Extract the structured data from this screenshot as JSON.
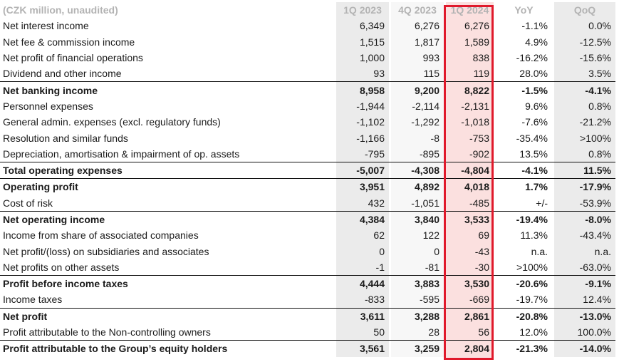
{
  "header": {
    "label": "(CZK million, unaudited)",
    "cols": [
      "1Q 2023",
      "4Q 2023",
      "1Q 2024",
      "YoY",
      "QoQ"
    ]
  },
  "rows": [
    {
      "label": "Net interest income",
      "bold": false,
      "v": [
        "6,349",
        "6,276",
        "6,276",
        "-1.1%",
        "0.0%"
      ]
    },
    {
      "label": "Net fee & commission income",
      "bold": false,
      "v": [
        "1,515",
        "1,817",
        "1,589",
        "4.9%",
        "-12.5%"
      ]
    },
    {
      "label": "Net profit of financial operations",
      "bold": false,
      "v": [
        "1,000",
        "993",
        "838",
        "-16.2%",
        "-15.6%"
      ]
    },
    {
      "label": "Dividend and other income",
      "bold": false,
      "v": [
        "93",
        "115",
        "119",
        "28.0%",
        "3.5%"
      ]
    },
    {
      "label": "Net banking income",
      "bold": true,
      "v": [
        "8,958",
        "9,200",
        "8,822",
        "-1.5%",
        "-4.1%"
      ]
    },
    {
      "label": "Personnel expenses",
      "bold": false,
      "v": [
        "-1,944",
        "-2,114",
        "-2,131",
        "9.6%",
        "0.8%"
      ]
    },
    {
      "label": "General admin. expenses (excl. regulatory funds)",
      "bold": false,
      "v": [
        "-1,102",
        "-1,292",
        "-1,018",
        "-7.6%",
        "-21.2%"
      ]
    },
    {
      "label": "Resolution and similar funds",
      "bold": false,
      "v": [
        "-1,166",
        "-8",
        "-753",
        "-35.4%",
        ">100%"
      ]
    },
    {
      "label": "Depreciation, amortisation & impairment of op. assets",
      "bold": false,
      "v": [
        "-795",
        "-895",
        "-902",
        "13.5%",
        "0.8%"
      ]
    },
    {
      "label": "Total operating expenses",
      "bold": true,
      "v": [
        "-5,007",
        "-4,308",
        "-4,804",
        "-4.1%",
        "11.5%"
      ]
    },
    {
      "label": "Operating profit",
      "bold": true,
      "v": [
        "3,951",
        "4,892",
        "4,018",
        "1.7%",
        "-17.9%"
      ]
    },
    {
      "label": "Cost of risk",
      "bold": false,
      "v": [
        "432",
        "-1,051",
        "-485",
        "+/-",
        "-53.9%"
      ]
    },
    {
      "label": "Net operating income",
      "bold": true,
      "v": [
        "4,384",
        "3,840",
        "3,533",
        "-19.4%",
        "-8.0%"
      ]
    },
    {
      "label": "Income from share of associated companies",
      "bold": false,
      "v": [
        "62",
        "122",
        "69",
        "11.3%",
        "-43.4%"
      ]
    },
    {
      "label": "Net profit/(loss) on subsidiaries and associates",
      "bold": false,
      "v": [
        "0",
        "0",
        "-43",
        "n.a.",
        "n.a."
      ]
    },
    {
      "label": "Net profits on other assets",
      "bold": false,
      "v": [
        "-1",
        "-81",
        "-30",
        ">100%",
        "-63.0%"
      ]
    },
    {
      "label": "Profit before income taxes",
      "bold": true,
      "v": [
        "4,444",
        "3,883",
        "3,530",
        "-20.6%",
        "-9.1%"
      ]
    },
    {
      "label": "Income taxes",
      "bold": false,
      "v": [
        "-833",
        "-595",
        "-669",
        "-19.7%",
        "12.4%"
      ]
    },
    {
      "label": "Net profit",
      "bold": true,
      "v": [
        "3,611",
        "3,288",
        "2,861",
        "-20.8%",
        "-13.0%"
      ]
    },
    {
      "label": "Profit attributable to the Non-controlling owners",
      "bold": false,
      "v": [
        "50",
        "28",
        "56",
        "12.0%",
        "100.0%"
      ]
    },
    {
      "label": "Profit attributable to the Group’s equity holders",
      "bold": true,
      "v": [
        "3,561",
        "3,259",
        "2,804",
        "-21.3%",
        "-14.0%"
      ]
    }
  ],
  "colors": {
    "highlight_border": "#e0192b",
    "highlight_fill": "#fbe0df",
    "header_text": "#b3b3b3",
    "col_shade": "#ebebeb"
  }
}
